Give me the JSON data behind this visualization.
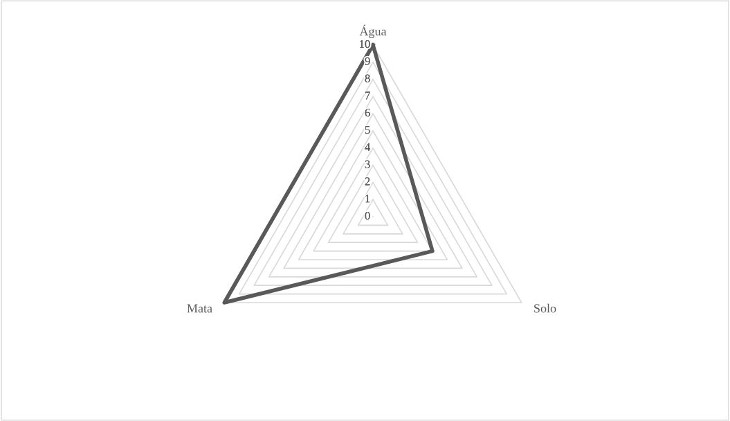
{
  "chart_data": {
    "type": "radar",
    "categories": [
      "Água",
      "Solo",
      "Mata"
    ],
    "series": [
      {
        "color": "#595959",
        "values": [
          10,
          4,
          10
        ]
      }
    ],
    "ylim": [
      0,
      10
    ],
    "yticks": [
      0,
      1,
      2,
      3,
      4,
      5,
      6,
      7,
      8,
      9,
      10
    ],
    "grid": true
  }
}
